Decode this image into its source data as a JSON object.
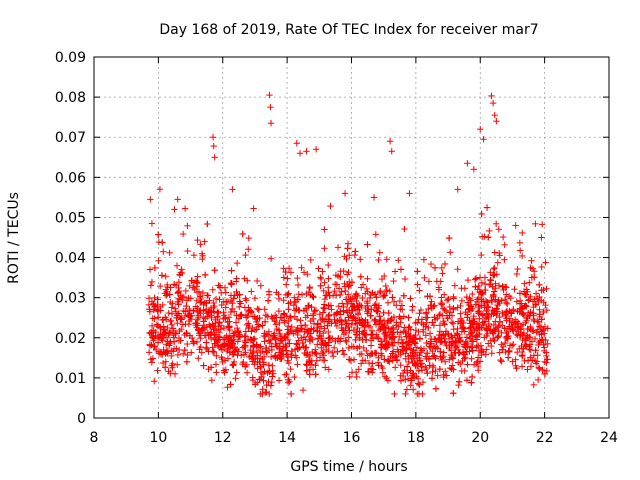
{
  "chart_data": {
    "type": "scatter",
    "title": "Day 168 of 2019, Rate Of TEC Index for receiver mar7",
    "xlabel": "GPS time / hours",
    "ylabel": "ROTI / TECUs",
    "xlim": [
      8,
      24
    ],
    "ylim": [
      0,
      0.09
    ],
    "xticks": [
      8,
      10,
      12,
      14,
      16,
      18,
      20,
      22,
      24
    ],
    "yticks": [
      0,
      0.01,
      0.02,
      0.03,
      0.04,
      0.05,
      0.06,
      0.07,
      0.08,
      0.09
    ],
    "xtick_labels": [
      "8",
      "10",
      "12",
      "14",
      "16",
      "18",
      "20",
      "22",
      "24"
    ],
    "ytick_labels": [
      "0",
      "0.01",
      "0.02",
      "0.03",
      "0.04",
      "0.05",
      "0.06",
      "0.07",
      "0.08",
      "0.09"
    ],
    "grid": true,
    "marker": "+",
    "color": "#ff0000",
    "series": [
      {
        "name": "ROTI",
        "note": "Dense scatter; main cloud 0.008-0.035 TECU/s between 9.7 h and 22.1 h; representative spikes listed below",
        "x": [
          9.75,
          9.8,
          10.5,
          10.6,
          11.7,
          11.72,
          11.75,
          12.3,
          13.45,
          13.48,
          13.5,
          14.3,
          14.4,
          14.6,
          14.9,
          15.8,
          16.7,
          17.2,
          17.25,
          17.8,
          19.3,
          19.6,
          19.8,
          20.0,
          20.1,
          20.35,
          20.4,
          20.45,
          20.5,
          21.1,
          21.9
        ],
        "y": [
          0.0545,
          0.0485,
          0.052,
          0.0545,
          0.07,
          0.0678,
          0.065,
          0.057,
          0.0805,
          0.0775,
          0.0735,
          0.0685,
          0.066,
          0.0665,
          0.067,
          0.056,
          0.055,
          0.069,
          0.0665,
          0.056,
          0.057,
          0.0635,
          0.062,
          0.072,
          0.0695,
          0.0803,
          0.0785,
          0.0755,
          0.074,
          0.048,
          0.045
        ]
      }
    ]
  },
  "colors": {
    "points": "#ff0000",
    "grid": "#a0a0a0",
    "axes": "#000000"
  }
}
